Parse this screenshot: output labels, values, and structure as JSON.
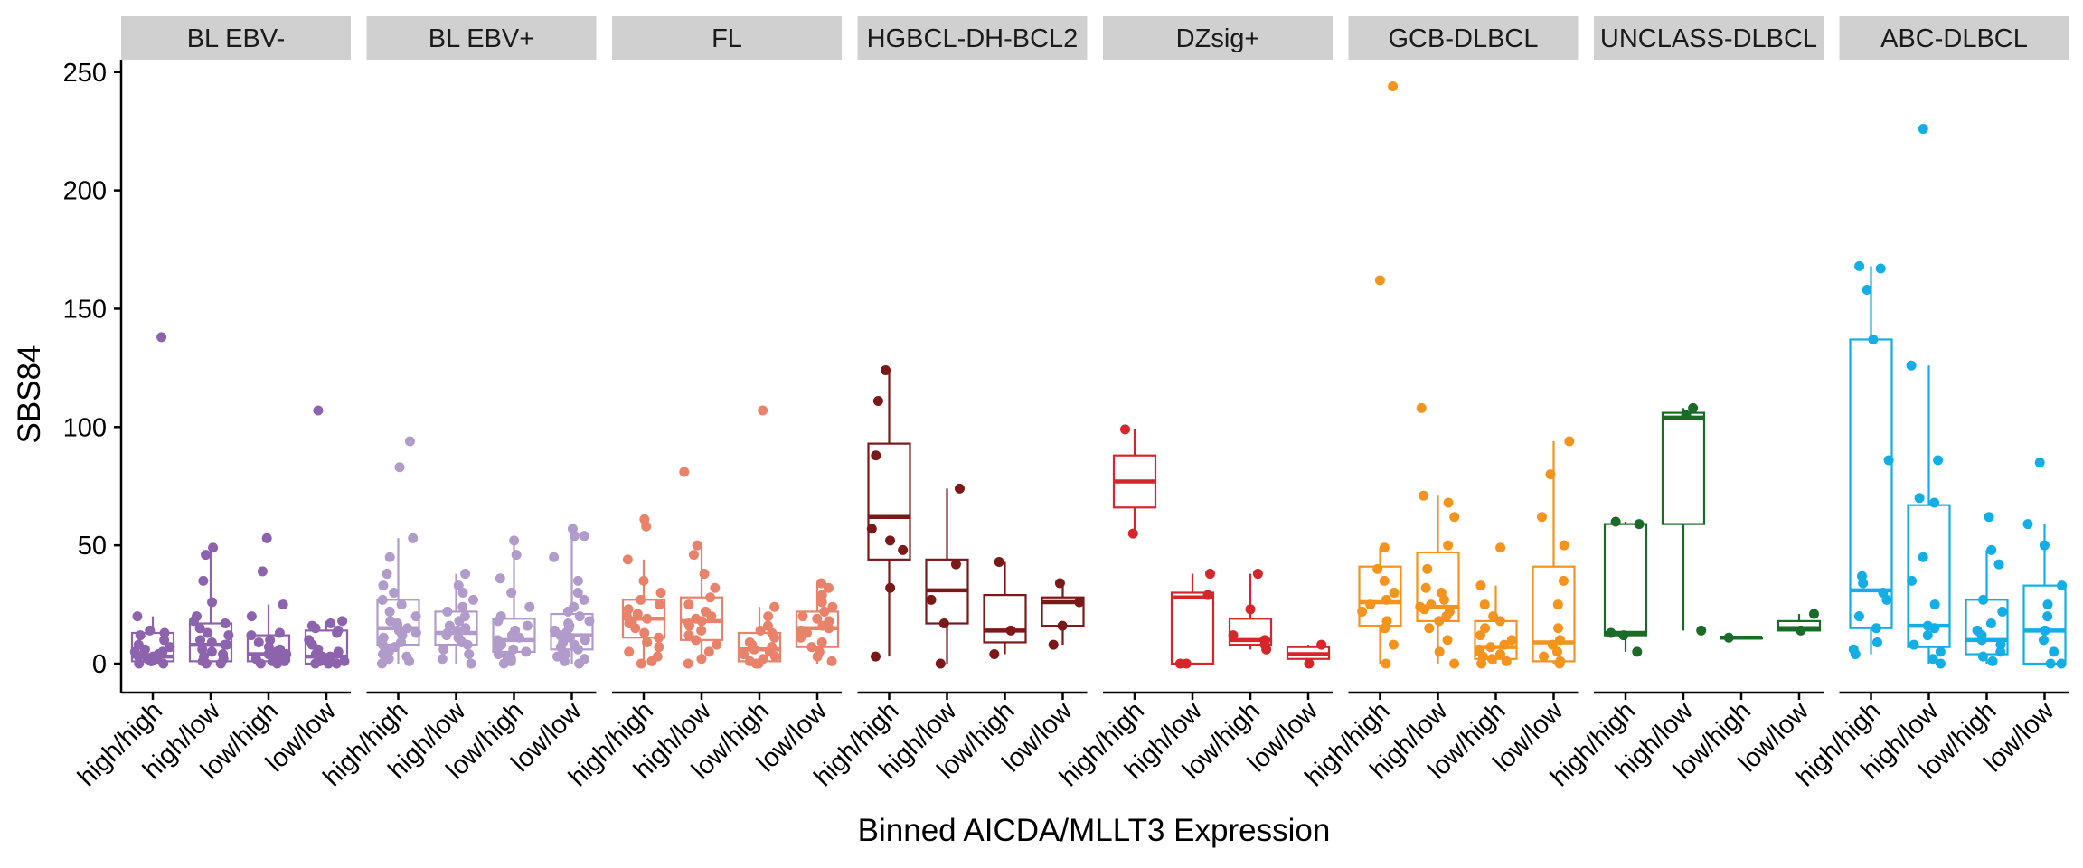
{
  "chart_data": {
    "type": "boxplot",
    "xlabel": "Binned AICDA/MLLT3 Expression",
    "ylabel": "SBS84",
    "ylim": [
      -10,
      255
    ],
    "yticks": [
      0,
      50,
      100,
      150,
      200,
      250
    ],
    "categories": [
      "high/high",
      "high/low",
      "low/high",
      "low/low"
    ],
    "grid": false,
    "legend": "none",
    "facets": [
      {
        "name": "BL EBV-",
        "color": "#8E63AE",
        "groups": [
          {
            "category": "high/high",
            "q1": 1,
            "median": 3,
            "q3": 13,
            "whisker_low": 0,
            "whisker_high": 20,
            "points": [
              138,
              20,
              14,
              13,
              12,
              10,
              8,
              7,
              6,
              5,
              5,
              4,
              4,
              3,
              3,
              2,
              2,
              1,
              1,
              0,
              0
            ]
          },
          {
            "category": "high/low",
            "q1": 1,
            "median": 8,
            "q3": 17,
            "whisker_low": 0,
            "whisker_high": 49,
            "points": [
              49,
              46,
              35,
              26,
              20,
              18,
              17,
              15,
              13,
              12,
              10,
              9,
              8,
              8,
              6,
              5,
              4,
              3,
              2,
              1,
              0,
              0
            ]
          },
          {
            "category": "low/high",
            "q1": 1,
            "median": 4,
            "q3": 12,
            "whisker_low": 0,
            "whisker_high": 25,
            "points": [
              53,
              39,
              25,
              20,
              13,
              12,
              10,
              9,
              7,
              6,
              5,
              4,
              4,
              3,
              2,
              1,
              1,
              0,
              0
            ]
          },
          {
            "category": "low/low",
            "q1": 0,
            "median": 3,
            "q3": 14,
            "whisker_low": 0,
            "whisker_high": 18,
            "points": [
              107,
              18,
              17,
              16,
              15,
              14,
              13,
              10,
              8,
              6,
              5,
              4,
              3,
              3,
              2,
              1,
              1,
              0,
              0,
              0
            ]
          }
        ]
      },
      {
        "name": "BL EBV+",
        "color": "#B09BCB",
        "groups": [
          {
            "category": "high/high",
            "q1": 8,
            "median": 15,
            "q3": 27,
            "whisker_low": 0,
            "whisker_high": 53,
            "points": [
              94,
              83,
              53,
              45,
              38,
              33,
              30,
              27,
              25,
              22,
              20,
              18,
              17,
              16,
              15,
              14,
              13,
              12,
              11,
              10,
              9,
              8,
              7,
              6,
              5,
              4,
              3,
              2,
              1,
              0
            ]
          },
          {
            "category": "high/low",
            "q1": 8,
            "median": 13,
            "q3": 22,
            "whisker_low": 0,
            "whisker_high": 38,
            "points": [
              38,
              33,
              30,
              27,
              24,
              22,
              20,
              18,
              16,
              15,
              14,
              13,
              12,
              11,
              10,
              9,
              8,
              6,
              4,
              2,
              0
            ]
          },
          {
            "category": "low/high",
            "q1": 5,
            "median": 10,
            "q3": 19,
            "whisker_low": 0,
            "whisker_high": 52,
            "points": [
              52,
              46,
              36,
              30,
              24,
              20,
              18,
              16,
              14,
              12,
              11,
              10,
              9,
              8,
              7,
              6,
              5,
              4,
              3,
              2,
              1,
              0
            ]
          },
          {
            "category": "low/low",
            "q1": 6,
            "median": 12,
            "q3": 21,
            "whisker_low": 0,
            "whisker_high": 57,
            "points": [
              57,
              54,
              54,
              45,
              35,
              30,
              27,
              24,
              22,
              20,
              18,
              17,
              16,
              15,
              14,
              13,
              12,
              11,
              10,
              9,
              8,
              7,
              6,
              5,
              4,
              3,
              2,
              1,
              0
            ]
          }
        ]
      },
      {
        "name": "FL",
        "color": "#E9826A",
        "groups": [
          {
            "category": "high/high",
            "q1": 11,
            "median": 19,
            "q3": 27,
            "whisker_low": 0,
            "whisker_high": 44,
            "points": [
              61,
              58,
              44,
              35,
              30,
              27,
              25,
              23,
              21,
              20,
              19,
              18,
              17,
              15,
              13,
              11,
              9,
              7,
              5,
              3,
              1,
              0
            ]
          },
          {
            "category": "high/low",
            "q1": 10,
            "median": 18,
            "q3": 28,
            "whisker_low": 0,
            "whisker_high": 50,
            "points": [
              81,
              50,
              46,
              38,
              32,
              28,
              25,
              22,
              20,
              19,
              18,
              17,
              16,
              14,
              12,
              10,
              8,
              5,
              2,
              0
            ]
          },
          {
            "category": "low/high",
            "q1": 1,
            "median": 6,
            "q3": 13,
            "whisker_low": 0,
            "whisker_high": 24,
            "points": [
              107,
              24,
              20,
              16,
              14,
              13,
              11,
              9,
              8,
              7,
              6,
              5,
              4,
              3,
              2,
              1,
              0,
              0
            ]
          },
          {
            "category": "low/low",
            "q1": 7,
            "median": 15,
            "q3": 22,
            "whisker_low": 0,
            "whisker_high": 34,
            "points": [
              34,
              32,
              29,
              26,
              24,
              22,
              20,
              19,
              18,
              16,
              15,
              14,
              13,
              11,
              9,
              7,
              5,
              3,
              1
            ]
          }
        ]
      },
      {
        "name": "HGBCL-DH-BCL2",
        "color": "#7B1818",
        "groups": [
          {
            "category": "high/high",
            "q1": 44,
            "median": 62,
            "q3": 93,
            "whisker_low": 3,
            "whisker_high": 123,
            "points": [
              124,
              111,
              88,
              57,
              52,
              48,
              32,
              3
            ]
          },
          {
            "category": "high/low",
            "q1": 17,
            "median": 31,
            "q3": 44,
            "whisker_low": 0,
            "whisker_high": 74,
            "points": [
              74,
              42,
              27,
              17,
              0
            ]
          },
          {
            "category": "low/high",
            "q1": 9,
            "median": 14,
            "q3": 29,
            "whisker_low": 4,
            "whisker_high": 43,
            "points": [
              43,
              14,
              4
            ]
          },
          {
            "category": "low/low",
            "q1": 16,
            "median": 26,
            "q3": 28,
            "whisker_low": 8,
            "whisker_high": 34,
            "points": [
              34,
              26,
              16,
              8
            ]
          }
        ]
      },
      {
        "name": "DZsig+",
        "color": "#D7262B",
        "groups": [
          {
            "category": "high/high",
            "q1": 66,
            "median": 77,
            "q3": 88,
            "whisker_low": 55,
            "whisker_high": 99,
            "points": [
              99,
              55
            ]
          },
          {
            "category": "high/low",
            "q1": 0,
            "median": 28,
            "q3": 30,
            "whisker_low": 0,
            "whisker_high": 38,
            "points": [
              38,
              29,
              0,
              0
            ]
          },
          {
            "category": "low/high",
            "q1": 8,
            "median": 10,
            "q3": 19,
            "whisker_low": 6,
            "whisker_high": 38,
            "points": [
              38,
              23,
              12,
              10,
              8,
              6
            ]
          },
          {
            "category": "low/low",
            "q1": 2,
            "median": 4,
            "q3": 7,
            "whisker_low": 0,
            "whisker_high": 8,
            "points": [
              8,
              0
            ]
          }
        ]
      },
      {
        "name": "GCB-DLBCL",
        "color": "#F4941E",
        "groups": [
          {
            "category": "high/high",
            "q1": 16,
            "median": 26,
            "q3": 41,
            "whisker_low": 0,
            "whisker_high": 49,
            "points": [
              244,
              162,
              49,
              40,
              35,
              30,
              27,
              25,
              22,
              18,
              15,
              8,
              0
            ]
          },
          {
            "category": "high/low",
            "q1": 18,
            "median": 24,
            "q3": 47,
            "whisker_low": 0,
            "whisker_high": 71,
            "points": [
              108,
              71,
              68,
              62,
              50,
              40,
              32,
              30,
              27,
              25,
              24,
              23,
              22,
              20,
              18,
              15,
              10,
              5,
              0
            ]
          },
          {
            "category": "low/high",
            "q1": 2,
            "median": 7,
            "q3": 18,
            "whisker_low": 0,
            "whisker_high": 33,
            "points": [
              49,
              33,
              25,
              20,
              18,
              15,
              12,
              10,
              8,
              7,
              6,
              5,
              4,
              3,
              2,
              1,
              0
            ]
          },
          {
            "category": "low/low",
            "q1": 1,
            "median": 9,
            "q3": 41,
            "whisker_low": 0,
            "whisker_high": 94,
            "points": [
              94,
              80,
              62,
              50,
              35,
              25,
              15,
              10,
              8,
              5,
              3,
              1,
              0
            ]
          }
        ]
      },
      {
        "name": "UNCLASS-DLBCL",
        "color": "#1A6B27",
        "groups": [
          {
            "category": "high/high",
            "q1": 12,
            "median": 13,
            "q3": 59,
            "whisker_low": 5,
            "whisker_high": 60,
            "points": [
              60,
              59,
              13,
              12,
              5
            ]
          },
          {
            "category": "high/low",
            "q1": 59,
            "median": 104,
            "q3": 106,
            "whisker_low": 14,
            "whisker_high": 108,
            "points": [
              108,
              105,
              14
            ]
          },
          {
            "category": "low/high",
            "q1": 11,
            "median": 11,
            "q3": 11,
            "whisker_low": 11,
            "whisker_high": 11,
            "points": [
              11
            ]
          },
          {
            "category": "low/low",
            "q1": 14,
            "median": 15,
            "q3": 18,
            "whisker_low": 13,
            "whisker_high": 21,
            "points": [
              21,
              14
            ]
          }
        ]
      },
      {
        "name": "ABC-DLBCL",
        "color": "#14AEE6",
        "groups": [
          {
            "category": "high/high",
            "q1": 15,
            "median": 31,
            "q3": 137,
            "whisker_low": 4,
            "whisker_high": 168,
            "points": [
              168,
              167,
              158,
              137,
              86,
              37,
              34,
              30,
              27,
              20,
              15,
              9,
              6,
              4
            ]
          },
          {
            "category": "high/low",
            "q1": 7,
            "median": 16,
            "q3": 67,
            "whisker_low": 0,
            "whisker_high": 126,
            "points": [
              226,
              126,
              86,
              70,
              68,
              45,
              35,
              25,
              16,
              15,
              12,
              8,
              5,
              2,
              0
            ]
          },
          {
            "category": "low/high",
            "q1": 4,
            "median": 10,
            "q3": 27,
            "whisker_low": 0,
            "whisker_high": 48,
            "points": [
              62,
              48,
              42,
              27,
              22,
              17,
              14,
              12,
              10,
              8,
              5,
              3,
              1
            ]
          },
          {
            "category": "low/low",
            "q1": 0,
            "median": 14,
            "q3": 33,
            "whisker_low": 0,
            "whisker_high": 59,
            "points": [
              85,
              59,
              50,
              33,
              25,
              20,
              14,
              10,
              5,
              0,
              0
            ]
          }
        ]
      }
    ]
  }
}
